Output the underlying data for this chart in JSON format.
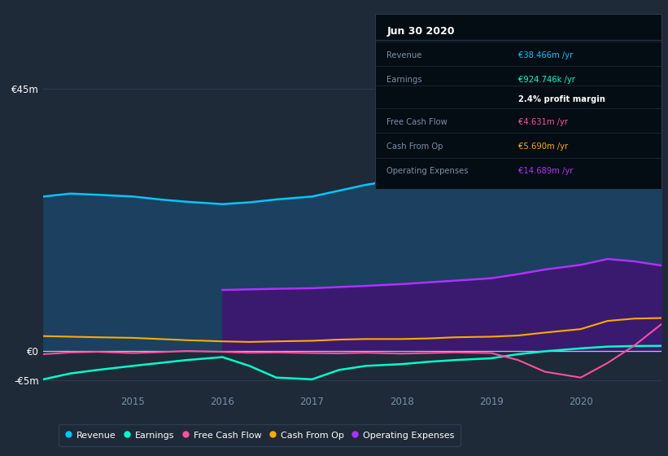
{
  "background_color": "#1e2a38",
  "plot_bg_color": "#1e2a38",
  "ylim": [
    -7000000,
    50000000
  ],
  "yticks": [
    -5000000,
    0,
    45000000
  ],
  "ytick_labels": [
    "-€5m",
    "€0",
    "€45m"
  ],
  "grid_color": "#2d3d4f",
  "x_years": [
    2014.0,
    2014.3,
    2014.6,
    2015.0,
    2015.3,
    2015.6,
    2016.0,
    2016.3,
    2016.6,
    2017.0,
    2017.3,
    2017.6,
    2018.0,
    2018.3,
    2018.6,
    2019.0,
    2019.3,
    2019.6,
    2020.0,
    2020.3,
    2020.6,
    2020.9
  ],
  "revenue": [
    26500000,
    27000000,
    26800000,
    26500000,
    26000000,
    25600000,
    25200000,
    25500000,
    26000000,
    26500000,
    27500000,
    28500000,
    29500000,
    31000000,
    32500000,
    34000000,
    36500000,
    39500000,
    43000000,
    45000000,
    43500000,
    38466000
  ],
  "earnings": [
    -4800000,
    -3800000,
    -3200000,
    -2500000,
    -2000000,
    -1500000,
    -1000000,
    -2500000,
    -4500000,
    -4800000,
    -3200000,
    -2500000,
    -2200000,
    -1800000,
    -1500000,
    -1200000,
    -500000,
    0,
    500000,
    800000,
    900000,
    924746
  ],
  "free_cash_flow": [
    -500000,
    -200000,
    -100000,
    -300000,
    -150000,
    50000,
    -100000,
    -250000,
    -200000,
    -300000,
    -350000,
    -250000,
    -400000,
    -300000,
    -200000,
    -300000,
    -1500000,
    -3500000,
    -4500000,
    -2000000,
    1000000,
    4631000
  ],
  "cash_from_op": [
    2600000,
    2500000,
    2400000,
    2300000,
    2100000,
    1900000,
    1700000,
    1600000,
    1700000,
    1800000,
    2000000,
    2100000,
    2100000,
    2200000,
    2400000,
    2500000,
    2700000,
    3200000,
    3800000,
    5200000,
    5600000,
    5690000
  ],
  "operating_expenses": [
    0,
    0,
    0,
    0,
    0,
    0,
    10500000,
    10600000,
    10700000,
    10800000,
    11000000,
    11200000,
    11500000,
    11800000,
    12100000,
    12500000,
    13200000,
    14000000,
    14800000,
    15800000,
    15400000,
    14689000
  ],
  "revenue_color": "#00c8ff",
  "revenue_fill_color": "#1b4060",
  "earnings_color": "#00ffcc",
  "fcf_color": "#ff4fa0",
  "cash_op_color": "#ffaa00",
  "op_exp_color": "#b030ff",
  "op_exp_fill_color": "#3a1a6e",
  "text_color": "#ffffff",
  "dim_text_color": "#7a8fa8",
  "infobox_bg": "#050d14",
  "infobox_border": "#2a3a4a",
  "legend_bg": "#1e2a38",
  "legend_border": "#2d3d4f",
  "x_label_years": [
    2015,
    2016,
    2017,
    2018,
    2019,
    2020
  ],
  "info_title": "Jun 30 2020",
  "info_revenue_label": "Revenue",
  "info_revenue_value": "€38.466m /yr",
  "info_earnings_label": "Earnings",
  "info_earnings_value": "€924.746k /yr",
  "info_margin": "2.4% profit margin",
  "info_fcf_label": "Free Cash Flow",
  "info_fcf_value": "€4.631m /yr",
  "info_cashop_label": "Cash From Op",
  "info_cashop_value": "€5.690m /yr",
  "info_opex_label": "Operating Expenses",
  "info_opex_value": "€14.689m /yr"
}
